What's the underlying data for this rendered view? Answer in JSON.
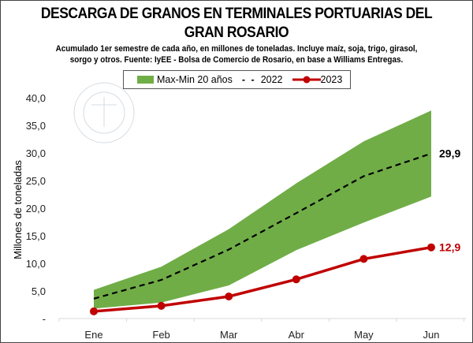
{
  "chart_data": {
    "type": "line",
    "title": "DESCARGA DE GRANOS EN TERMINALES PORTUARIAS DEL GRAN ROSARIO",
    "title_lines": [
      "DESCARGA DE GRANOS EN TERMINALES PORTUARIAS DEL",
      "GRAN ROSARIO"
    ],
    "subtitle_lines": [
      "Acumulado 1er semestre de cada año, en millones de toneladas. Incluye maíz, soja, trigo, girasol,",
      "sorgo y otros. Fuente: IyEE - Bolsa de Comercio de Rosario, en base a Williams Entregas."
    ],
    "ylabel": "Millones de toneladas",
    "xlabel": "",
    "categories": [
      "Ene",
      "Feb",
      "Mar",
      "Abr",
      "May",
      "Jun"
    ],
    "ylim": [
      0,
      40
    ],
    "yticks": [
      "-",
      "5,0",
      "10,0",
      "15,0",
      "20,0",
      "25,0",
      "30,0",
      "35,0",
      "40,0"
    ],
    "grid": false,
    "legend_position": "top",
    "band": {
      "name": "Max-Min 20 años",
      "max": [
        5.2,
        9.4,
        16.2,
        24.5,
        32.1,
        37.7
      ],
      "min": [
        1.8,
        2.9,
        6.0,
        12.4,
        17.4,
        22.1
      ],
      "color": "#70AD47"
    },
    "series": [
      {
        "name": "2022",
        "values": [
          3.6,
          7.0,
          12.5,
          19.1,
          25.8,
          29.9
        ],
        "color": "#000000",
        "style": "dashed",
        "end_label": "29,9"
      },
      {
        "name": "2023",
        "values": [
          1.3,
          2.3,
          4.0,
          7.1,
          10.8,
          12.9
        ],
        "color": "#C00000",
        "style": "solid-markers",
        "end_label": "12,9"
      }
    ]
  },
  "watermark": "BOLSA DE COMERCIO DE ROSARIO"
}
